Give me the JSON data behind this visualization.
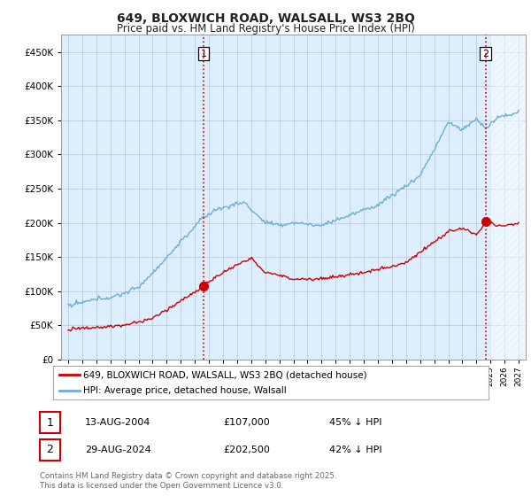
{
  "title": "649, BLOXWICH ROAD, WALSALL, WS3 2BQ",
  "subtitle": "Price paid vs. HM Land Registry's House Price Index (HPI)",
  "ytick_values": [
    0,
    50000,
    100000,
    150000,
    200000,
    250000,
    300000,
    350000,
    400000,
    450000
  ],
  "ylim": [
    0,
    475000
  ],
  "xlim_start": 1994.5,
  "xlim_end": 2027.5,
  "hpi_color": "#6baed6",
  "price_color": "#cc0000",
  "transaction1_x": 2004.617,
  "transaction1_y": 107000,
  "transaction2_x": 2024.659,
  "transaction2_y": 202500,
  "vline_color": "#cc0000",
  "legend_label1": "649, BLOXWICH ROAD, WALSALL, WS3 2BQ (detached house)",
  "legend_label2": "HPI: Average price, detached house, Walsall",
  "table_row1": [
    "1",
    "13-AUG-2004",
    "£107,000",
    "45% ↓ HPI"
  ],
  "table_row2": [
    "2",
    "29-AUG-2024",
    "£202,500",
    "42% ↓ HPI"
  ],
  "footnote": "Contains HM Land Registry data © Crown copyright and database right 2025.\nThis data is licensed under the Open Government Licence v3.0.",
  "chart_bg": "#ddeeff",
  "background_color": "#ffffff",
  "grid_color": "#bbccdd"
}
